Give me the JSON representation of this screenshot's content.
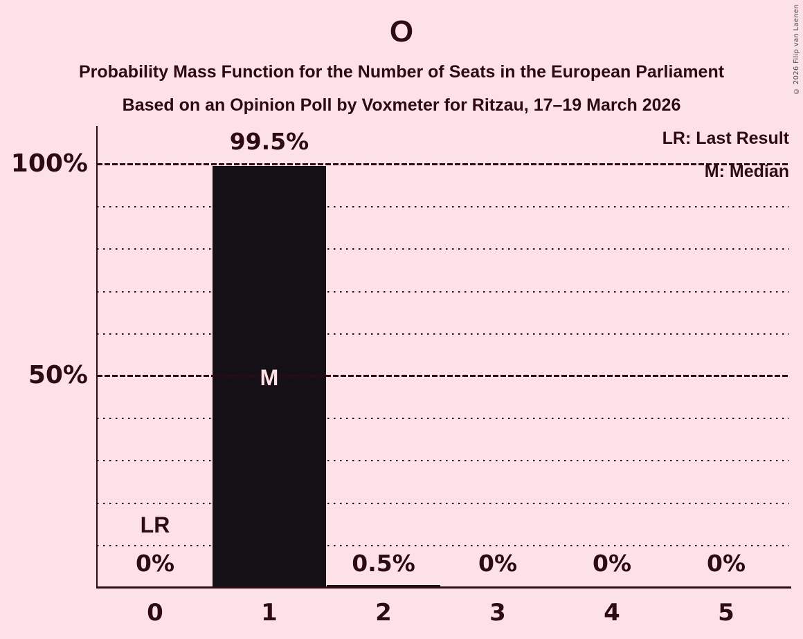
{
  "chart_data": {
    "type": "bar",
    "title": "O",
    "subtitle1": "Probability Mass Function for the Number of Seats in the European Parliament",
    "subtitle2": "Based on an Opinion Poll by Voxmeter for Ritzau, 17–19 March 2026",
    "categories": [
      "0",
      "1",
      "2",
      "3",
      "4",
      "5"
    ],
    "values": [
      0,
      99.5,
      0.5,
      0,
      0,
      0
    ],
    "value_labels": [
      "0%",
      "99.5%",
      "0.5%",
      "0%",
      "0%",
      "0%"
    ],
    "ylim": [
      0,
      100
    ],
    "yticks": [
      {
        "label": "100%",
        "pct": 100
      },
      {
        "label": "50%",
        "pct": 50
      }
    ],
    "minor_grid_step_pct": 10,
    "grid": "on",
    "legend_position": "top-right",
    "legend": [
      "LR: Last Result",
      "M: Median"
    ],
    "annotations": {
      "lr_label": "LR",
      "lr_category_index": 0,
      "median_label": "M",
      "median_category_index": 1
    },
    "copyright": "© 2026 Filip van Laenen",
    "colors": {
      "background": "#fce2e6",
      "text": "#2e0a14",
      "bar": "#151015",
      "bar_label": "#fce2e6",
      "grid": "#2e0a14",
      "copyright": "#4d4d4d"
    }
  }
}
